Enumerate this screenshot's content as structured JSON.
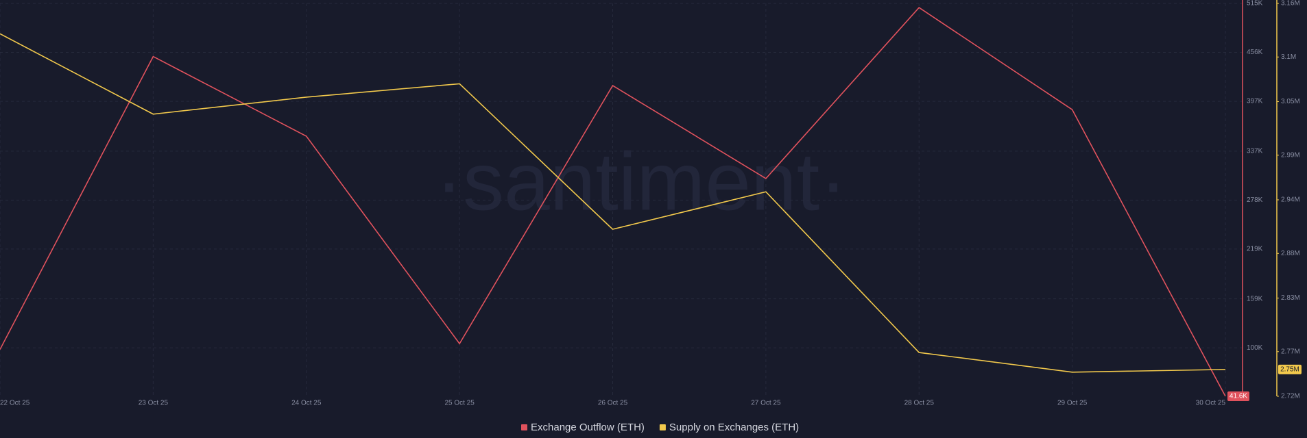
{
  "chart_data": {
    "type": "line",
    "watermark": "·santiment·",
    "categories": [
      "22 Oct 25",
      "23 Oct 25",
      "24 Oct 25",
      "25 Oct 25",
      "26 Oct 25",
      "27 Oct 25",
      "28 Oct 25",
      "29 Oct 25",
      "30 Oct 25"
    ],
    "series": [
      {
        "name": "Exchange Outflow (ETH)",
        "color": "#e0525d",
        "axis": "y",
        "values": [
          98000,
          451000,
          355000,
          105000,
          416000,
          304000,
          510000,
          387000,
          41600
        ],
        "value_labels": [
          null,
          null,
          null,
          null,
          null,
          null,
          null,
          null,
          "41.6K"
        ]
      },
      {
        "name": "Supply on Exchanges (ETH)",
        "color": "#f2c94c",
        "axis": "y2",
        "values": [
          3126000,
          3036000,
          3055000,
          3070000,
          2907000,
          2949000,
          2769000,
          2747000,
          2750000
        ],
        "value_labels": [
          null,
          null,
          null,
          null,
          null,
          null,
          null,
          null,
          "2.75M"
        ]
      }
    ],
    "ylim": [
      41600,
      515000
    ],
    "yticks": [
      {
        "value": 515000,
        "label": "515K"
      },
      {
        "value": 456000,
        "label": "456K"
      },
      {
        "value": 397000,
        "label": "397K"
      },
      {
        "value": 337000,
        "label": "337K"
      },
      {
        "value": 278000,
        "label": "278K"
      },
      {
        "value": 219000,
        "label": "219K"
      },
      {
        "value": 159000,
        "label": "159K"
      },
      {
        "value": 100000,
        "label": "100K"
      }
    ],
    "y2lim": [
      2720000,
      3160000
    ],
    "y2ticks": [
      {
        "value": 3160000,
        "label": "3.16M"
      },
      {
        "value": 3100000,
        "label": "3.1M"
      },
      {
        "value": 3050000,
        "label": "3.05M"
      },
      {
        "value": 2990000,
        "label": "2.99M"
      },
      {
        "value": 2940000,
        "label": "2.94M"
      },
      {
        "value": 2880000,
        "label": "2.88M"
      },
      {
        "value": 2830000,
        "label": "2.83M"
      },
      {
        "value": 2770000,
        "label": "2.77M"
      },
      {
        "value": 2720000,
        "label": "2.72M"
      }
    ],
    "grid": true
  }
}
